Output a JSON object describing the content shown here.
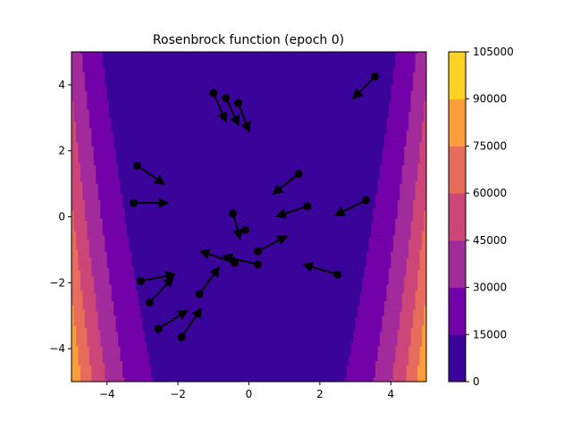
{
  "chart_data": {
    "type": "contour",
    "title": "Rosenbrock function (epoch 0)",
    "xlabel": "",
    "ylabel": "",
    "xlim": [
      -5,
      5
    ],
    "ylim": [
      -5,
      5
    ],
    "x_ticks": [
      -4,
      -2,
      0,
      2,
      4
    ],
    "y_ticks": [
      -4,
      -2,
      0,
      2,
      4
    ],
    "x_tick_labels": [
      "−4",
      "−2",
      "0",
      "2",
      "4"
    ],
    "y_tick_labels": [
      "−4",
      "−2",
      "0",
      "2",
      "4"
    ],
    "function": {
      "a": 1,
      "b": 100
    },
    "contour_levels": [
      0,
      15000,
      30000,
      45000,
      60000,
      75000,
      90000,
      105000
    ],
    "level_colors": [
      "#3a049a",
      "#7201a8",
      "#a22b9b",
      "#cc4778",
      "#e66c5c",
      "#fa9e3b",
      "#fcd225"
    ],
    "colorbar": {
      "ticks": [
        0,
        15000,
        30000,
        45000,
        60000,
        75000,
        90000,
        105000
      ],
      "tick_labels": [
        "0",
        "15000",
        "30000",
        "45000",
        "60000",
        "75000",
        "90000",
        "105000"
      ]
    },
    "grid": false,
    "points": [
      {
        "x": -1.0,
        "y": 3.75,
        "dx": 0.35,
        "dy": -0.85
      },
      {
        "x": -0.65,
        "y": 3.6,
        "dx": 0.35,
        "dy": -0.8
      },
      {
        "x": -0.3,
        "y": 3.45,
        "dx": 0.3,
        "dy": -0.85
      },
      {
        "x": 3.55,
        "y": 4.25,
        "dx": -0.6,
        "dy": -0.65
      },
      {
        "x": -3.15,
        "y": 1.55,
        "dx": 0.75,
        "dy": -0.55
      },
      {
        "x": 1.4,
        "y": 1.3,
        "dx": -0.7,
        "dy": -0.6
      },
      {
        "x": -3.25,
        "y": 0.42,
        "dx": 0.95,
        "dy": 0.0
      },
      {
        "x": 1.65,
        "y": 0.32,
        "dx": -0.85,
        "dy": -0.3
      },
      {
        "x": 3.3,
        "y": 0.5,
        "dx": -0.85,
        "dy": -0.45
      },
      {
        "x": -0.45,
        "y": 0.1,
        "dx": 0.2,
        "dy": -0.75
      },
      {
        "x": -0.1,
        "y": -0.4,
        "dx": 0.0,
        "dy": 0.0
      },
      {
        "x": 0.25,
        "y": -1.05,
        "dx": 0.8,
        "dy": 0.45
      },
      {
        "x": -0.4,
        "y": -1.4,
        "dx": -0.95,
        "dy": 0.35
      },
      {
        "x": 0.25,
        "y": -1.45,
        "dx": -0.95,
        "dy": 0.25
      },
      {
        "x": 2.5,
        "y": -1.75,
        "dx": -0.95,
        "dy": 0.3
      },
      {
        "x": -3.05,
        "y": -1.95,
        "dx": 0.95,
        "dy": 0.2
      },
      {
        "x": -2.8,
        "y": -2.6,
        "dx": 0.65,
        "dy": 0.75
      },
      {
        "x": -1.4,
        "y": -2.35,
        "dx": 0.55,
        "dy": 0.8
      },
      {
        "x": -2.55,
        "y": -3.4,
        "dx": 0.8,
        "dy": 0.55
      },
      {
        "x": -1.9,
        "y": -3.65,
        "dx": 0.55,
        "dy": 0.85
      }
    ]
  }
}
